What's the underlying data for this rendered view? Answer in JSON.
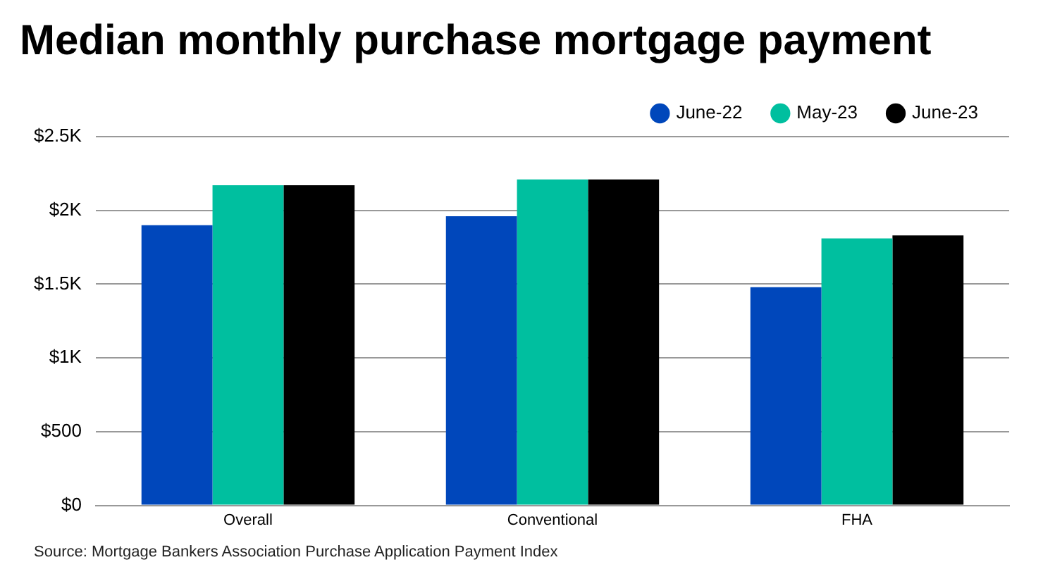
{
  "chart_data": {
    "type": "bar",
    "title": "Median monthly purchase mortgage payment",
    "categories": [
      "Overall",
      "Conventional",
      "FHA"
    ],
    "series": [
      {
        "name": "June-22",
        "color": "#0047bb",
        "values": [
          1900,
          1960,
          1480
        ]
      },
      {
        "name": "May-23",
        "color": "#00bf9f",
        "values": [
          2170,
          2210,
          1810
        ]
      },
      {
        "name": "June-23",
        "color": "#000000",
        "values": [
          2170,
          2210,
          1830
        ]
      }
    ],
    "ylim": [
      0,
      2500
    ],
    "yticks": [
      {
        "value": 0,
        "label": "$0"
      },
      {
        "value": 500,
        "label": "$500"
      },
      {
        "value": 1000,
        "label": "$1K"
      },
      {
        "value": 1500,
        "label": "$1.5K"
      },
      {
        "value": 2000,
        "label": "$2K"
      },
      {
        "value": 2500,
        "label": "$2.5K"
      }
    ],
    "grid": "y",
    "legend": "top right",
    "annotations": [
      "Source: Mortgage Bankers Association Purchase Application Payment Index"
    ]
  }
}
